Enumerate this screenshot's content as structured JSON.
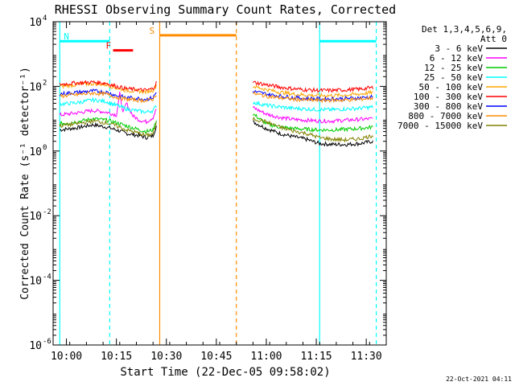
{
  "chart_data": {
    "type": "line",
    "title": "RHESSI Observing Summary Count Rates, Corrected",
    "xlabel": "Start Time (22-Dec-05 09:58:02)",
    "ylabel": "Corrected Count Rate (s⁻¹ detector⁻¹)",
    "y_scale": "log",
    "ylim": [
      1e-06,
      10000.0
    ],
    "xlim_minutes_after_0958": [
      -2,
      98
    ],
    "x_ticks": [
      {
        "label": "10:00",
        "minute": 2
      },
      {
        "label": "10:15",
        "minute": 17
      },
      {
        "label": "10:30",
        "minute": 32
      },
      {
        "label": "10:45",
        "minute": 47
      },
      {
        "label": "11:00",
        "minute": 62
      },
      {
        "label": "11:15",
        "minute": 77
      },
      {
        "label": "11:30",
        "minute": 92
      }
    ],
    "y_ticks": [
      {
        "base": "10",
        "exp": "4",
        "value": 10000
      },
      {
        "base": "10",
        "exp": "2",
        "value": 100
      },
      {
        "base": "10",
        "exp": "0",
        "value": 1
      },
      {
        "base": "10",
        "exp": "-2",
        "value": 0.01
      },
      {
        "base": "10",
        "exp": "-4",
        "value": 0.0001
      },
      {
        "base": "10",
        "exp": "-6",
        "value": 1e-06
      }
    ],
    "legend_header": [
      "Det 1,3,4,5,6,9,",
      "Att 0"
    ],
    "legend_placement": "right",
    "series": [
      {
        "name": "3 - 6 keV",
        "color": "#000000",
        "seg1": [
          [
            0,
            4.5
          ],
          [
            5,
            5.2
          ],
          [
            10,
            6.5
          ],
          [
            14,
            5.5
          ],
          [
            17,
            4.5
          ],
          [
            20,
            3.5
          ],
          [
            24,
            3.0
          ],
          [
            26,
            2.6
          ],
          [
            28,
            3.0
          ],
          [
            29,
            6.0
          ]
        ],
        "seg2": [
          [
            58,
            8.0
          ],
          [
            62,
            5.0
          ],
          [
            66,
            3.5
          ],
          [
            70,
            2.8
          ],
          [
            74,
            2.3
          ],
          [
            78,
            1.7
          ],
          [
            82,
            1.6
          ],
          [
            86,
            1.6
          ],
          [
            90,
            1.7
          ],
          [
            94,
            2.0
          ]
        ]
      },
      {
        "name": "6 - 12 keV",
        "color": "#ff00ff",
        "seg1": [
          [
            0,
            13
          ],
          [
            5,
            15
          ],
          [
            10,
            18
          ],
          [
            14,
            16
          ],
          [
            17,
            13
          ],
          [
            18,
            60
          ],
          [
            19,
            15
          ],
          [
            20,
            30
          ],
          [
            22,
            12
          ],
          [
            24,
            9
          ],
          [
            26,
            8
          ],
          [
            28,
            11
          ],
          [
            29,
            20
          ]
        ],
        "seg2": [
          [
            58,
            22
          ],
          [
            62,
            14
          ],
          [
            66,
            11
          ],
          [
            70,
            9.5
          ],
          [
            74,
            9
          ],
          [
            78,
            8.5
          ],
          [
            82,
            8.5
          ],
          [
            86,
            9
          ],
          [
            90,
            9.5
          ],
          [
            94,
            10
          ]
        ]
      },
      {
        "name": "12 - 25 keV",
        "color": "#00cc00",
        "seg1": [
          [
            0,
            7
          ],
          [
            5,
            8
          ],
          [
            10,
            10
          ],
          [
            14,
            9
          ],
          [
            17,
            7.5
          ],
          [
            20,
            6
          ],
          [
            24,
            4.5
          ],
          [
            26,
            4
          ],
          [
            28,
            4.5
          ],
          [
            29,
            9
          ]
        ],
        "seg2": [
          [
            58,
            14
          ],
          [
            62,
            7
          ],
          [
            66,
            5.5
          ],
          [
            70,
            5
          ],
          [
            74,
            4.7
          ],
          [
            78,
            4.5
          ],
          [
            82,
            4.5
          ],
          [
            86,
            4.7
          ],
          [
            90,
            5
          ],
          [
            94,
            5.5
          ]
        ]
      },
      {
        "name": "25 - 50 keV",
        "color": "#00ffff",
        "seg1": [
          [
            0,
            28
          ],
          [
            5,
            31
          ],
          [
            10,
            38
          ],
          [
            14,
            34
          ],
          [
            17,
            26
          ],
          [
            20,
            20
          ],
          [
            24,
            17
          ],
          [
            26,
            16
          ],
          [
            28,
            18
          ],
          [
            29,
            25
          ]
        ],
        "seg2": [
          [
            58,
            32
          ],
          [
            62,
            26
          ],
          [
            66,
            23
          ],
          [
            70,
            21
          ],
          [
            74,
            20
          ],
          [
            78,
            19
          ],
          [
            82,
            19
          ],
          [
            86,
            20
          ],
          [
            90,
            21
          ],
          [
            94,
            23
          ]
        ]
      },
      {
        "name": "50 - 100 keV",
        "color": "#ffa500",
        "seg1": [
          [
            0,
            100
          ],
          [
            5,
            112
          ],
          [
            10,
            122
          ],
          [
            14,
            112
          ],
          [
            17,
            88
          ],
          [
            20,
            75
          ],
          [
            24,
            70
          ],
          [
            26,
            68
          ],
          [
            28,
            76
          ],
          [
            29,
            110
          ]
        ],
        "seg2": [
          [
            58,
            100
          ],
          [
            62,
            80
          ],
          [
            66,
            66
          ],
          [
            70,
            58
          ],
          [
            74,
            54
          ],
          [
            78,
            52
          ],
          [
            82,
            52
          ],
          [
            86,
            54
          ],
          [
            90,
            58
          ],
          [
            94,
            65
          ]
        ]
      },
      {
        "name": "100 - 300 keV",
        "color": "#ff0000",
        "seg1": [
          [
            0,
            115
          ],
          [
            5,
            128
          ],
          [
            10,
            135
          ],
          [
            14,
            125
          ],
          [
            17,
            100
          ],
          [
            20,
            85
          ],
          [
            24,
            78
          ],
          [
            26,
            76
          ],
          [
            28,
            85
          ],
          [
            29,
            130
          ]
        ],
        "seg2": [
          [
            58,
            135
          ],
          [
            62,
            112
          ],
          [
            66,
            95
          ],
          [
            70,
            85
          ],
          [
            74,
            78
          ],
          [
            78,
            75
          ],
          [
            82,
            75
          ],
          [
            86,
            78
          ],
          [
            90,
            82
          ],
          [
            94,
            92
          ]
        ]
      },
      {
        "name": "300 - 800 keV",
        "color": "#0000ff",
        "seg1": [
          [
            0,
            58
          ],
          [
            5,
            65
          ],
          [
            10,
            72
          ],
          [
            14,
            66
          ],
          [
            17,
            52
          ],
          [
            20,
            45
          ],
          [
            24,
            42
          ],
          [
            26,
            40
          ],
          [
            28,
            45
          ],
          [
            29,
            65
          ]
        ],
        "seg2": [
          [
            58,
            70
          ],
          [
            62,
            58
          ],
          [
            66,
            50
          ],
          [
            70,
            45
          ],
          [
            74,
            42
          ],
          [
            78,
            41
          ],
          [
            82,
            41
          ],
          [
            86,
            42
          ],
          [
            90,
            44
          ],
          [
            94,
            48
          ]
        ]
      },
      {
        "name": "800 - 7000 keV",
        "color": "#ff8c00",
        "seg1": [
          [
            0,
            50
          ],
          [
            5,
            55
          ],
          [
            10,
            62
          ],
          [
            14,
            57
          ],
          [
            17,
            46
          ],
          [
            20,
            40
          ],
          [
            24,
            37
          ],
          [
            26,
            36
          ],
          [
            28,
            40
          ],
          [
            29,
            58
          ]
        ],
        "seg2": [
          [
            58,
            60
          ],
          [
            62,
            50
          ],
          [
            66,
            44
          ],
          [
            70,
            40
          ],
          [
            74,
            38
          ],
          [
            78,
            37
          ],
          [
            82,
            37
          ],
          [
            86,
            38
          ],
          [
            90,
            40
          ],
          [
            94,
            44
          ]
        ]
      },
      {
        "name": "7000 - 15000 keV",
        "color": "#808000",
        "seg1": [
          [
            0,
            6
          ],
          [
            5,
            7
          ],
          [
            10,
            8.5
          ],
          [
            14,
            7.5
          ],
          [
            17,
            6
          ],
          [
            20,
            4.5
          ],
          [
            24,
            3.5
          ],
          [
            26,
            3.0
          ],
          [
            28,
            3.5
          ],
          [
            29,
            7
          ]
        ],
        "seg2": [
          [
            58,
            10
          ],
          [
            62,
            8
          ],
          [
            66,
            5.5
          ],
          [
            70,
            4.2
          ],
          [
            74,
            3.5
          ],
          [
            78,
            2.6
          ],
          [
            82,
            2.3
          ],
          [
            86,
            2.2
          ],
          [
            90,
            2.4
          ],
          [
            94,
            3.0
          ]
        ]
      }
    ],
    "flags": [
      {
        "label": "N",
        "color": "#00ffff",
        "x0": 0,
        "x1": 15,
        "y": 2500
      },
      {
        "label": "F",
        "color": "#ff0000",
        "x0": 16,
        "x1": 22,
        "y": 1300
      },
      {
        "label": "S",
        "color": "#ff8c00",
        "x0": 30,
        "x1": 53,
        "y": 3800
      },
      {
        "label": "",
        "color": "#00ffff",
        "x0": 78,
        "x1": 95,
        "y": 2500
      }
    ],
    "vertical_lines": [
      {
        "minute": 0,
        "color": "#00ffff",
        "dashed": false
      },
      {
        "minute": 15,
        "color": "#00ffff",
        "dashed": true
      },
      {
        "minute": 30,
        "color": "#ff8c00",
        "dashed": false
      },
      {
        "minute": 53,
        "color": "#ff8c00",
        "dashed": true
      },
      {
        "minute": 78,
        "color": "#00ffff",
        "dashed": false
      },
      {
        "minute": 95,
        "color": "#00ffff",
        "dashed": true
      }
    ]
  },
  "footer": {
    "date_stamp": "22-Oct-2021 04:11"
  }
}
